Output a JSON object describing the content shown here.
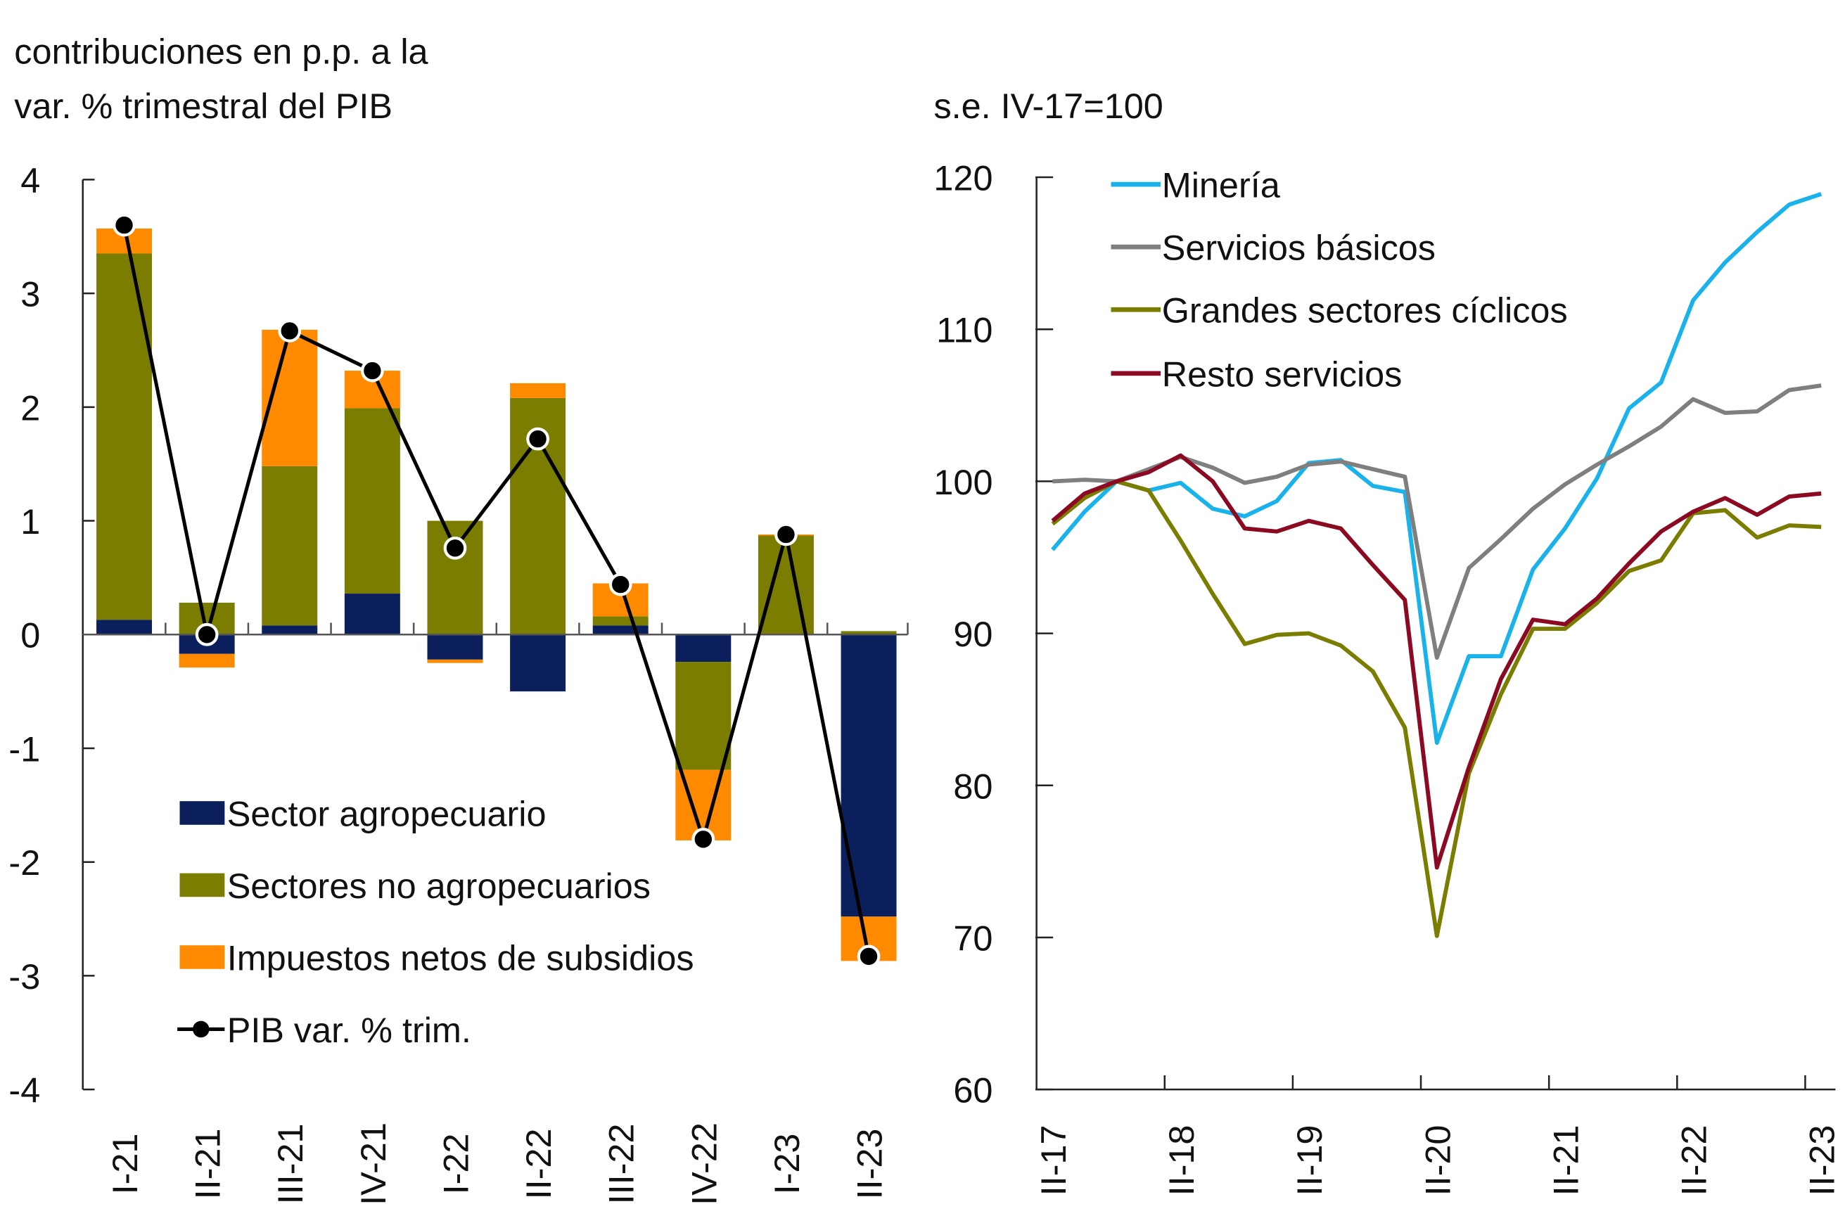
{
  "chart_data": [
    {
      "type": "bar",
      "stacked": true,
      "title": "contribuciones en p.p. a la var. % trimestral  del PIB",
      "title_lines": [
        "contribuciones en p.p. a la",
        "var. % trimestral  del PIB"
      ],
      "ylim": [
        -4,
        4
      ],
      "yticks": [
        "4",
        "3",
        "2",
        "1",
        "0",
        "-1",
        "-2",
        "-3",
        "-4"
      ],
      "categories": [
        "I-21",
        "II-21",
        "III-21",
        "IV-21",
        "I-22",
        "II-22",
        "III-22",
        "IV-22",
        "I-23",
        "II-23"
      ],
      "series": [
        {
          "name": "Sector agropecuario",
          "color": "#0b1f5c",
          "values": [
            0.13,
            -0.17,
            0.08,
            0.36,
            -0.22,
            -0.5,
            0.08,
            -0.24,
            0.0,
            -2.48
          ]
        },
        {
          "name": "Sectores no agropecuarios",
          "color": "#7a7d00",
          "values": [
            3.22,
            0.28,
            1.4,
            1.63,
            1.0,
            2.08,
            0.08,
            -0.95,
            0.87,
            0.03
          ]
        },
        {
          "name": "Impuestos netos de subsidios",
          "color": "#ff8a00",
          "values": [
            0.22,
            -0.12,
            1.2,
            0.33,
            -0.03,
            0.13,
            0.29,
            -0.62,
            0.01,
            -0.39
          ]
        }
      ],
      "line": {
        "name": "PIB var. % trim.",
        "color": "#000000",
        "values": [
          3.6,
          0.0,
          2.67,
          2.32,
          0.76,
          1.72,
          0.44,
          -1.8,
          0.88,
          -2.83
        ]
      },
      "legend_position": "bottom-left"
    },
    {
      "type": "line",
      "title": "s.e. IV-17=100",
      "ylim": [
        60,
        120
      ],
      "yticks": [
        "120",
        "110",
        "100",
        "90",
        "80",
        "70",
        "60"
      ],
      "x": [
        "II-17",
        "III-17",
        "IV-17",
        "I-18",
        "II-18",
        "III-18",
        "IV-18",
        "I-19",
        "II-19",
        "III-19",
        "IV-19",
        "I-20",
        "II-20",
        "III-20",
        "IV-20",
        "I-21",
        "II-21",
        "III-21",
        "IV-21",
        "I-22",
        "II-22",
        "III-22",
        "IV-22",
        "I-23",
        "II-23"
      ],
      "xtick_labels": [
        "II-17",
        "II-18",
        "II-19",
        "II-20",
        "II-21",
        "II-22",
        "II-23"
      ],
      "series": [
        {
          "name": "Minería",
          "color": "#1ab2ea",
          "values": [
            95.5,
            98,
            100,
            99.4,
            99.9,
            98.2,
            97.7,
            98.7,
            101.2,
            101.4,
            99.7,
            99.3,
            82.8,
            88.5,
            88.5,
            94.2,
            96.9,
            100.2,
            104.8,
            106.5,
            111.9,
            114.4,
            116.4,
            118.2,
            118.9
          ]
        },
        {
          "name": "Servicios básicos",
          "color": "#7f7f7f",
          "values": [
            100,
            100.1,
            100,
            100.8,
            101.6,
            100.9,
            99.9,
            100.3,
            101.1,
            101.3,
            100.8,
            100.3,
            88.4,
            94.3,
            96.2,
            98.2,
            99.8,
            101.1,
            102.3,
            103.6,
            105.4,
            104.5,
            104.6,
            106,
            106.3
          ]
        },
        {
          "name": "Grandes sectores cíclicos",
          "color": "#7a7d00",
          "values": [
            97.2,
            98.9,
            100,
            99.4,
            96.1,
            92.6,
            89.3,
            89.9,
            90,
            89.2,
            87.5,
            83.8,
            70.1,
            80.8,
            86,
            90.3,
            90.3,
            92,
            94.1,
            94.8,
            97.9,
            98.1,
            96.3,
            97.1,
            97
          ]
        },
        {
          "name": "Resto servicios",
          "color": "#8b0a22",
          "values": [
            97.4,
            99.2,
            100,
            100.6,
            101.7,
            100,
            96.9,
            96.7,
            97.4,
            96.9,
            94.5,
            92.2,
            74.6,
            81.2,
            87,
            90.9,
            90.6,
            92.3,
            94.6,
            96.7,
            98,
            98.9,
            97.8,
            99,
            99.2
          ]
        }
      ],
      "legend_position": "top-left"
    }
  ]
}
